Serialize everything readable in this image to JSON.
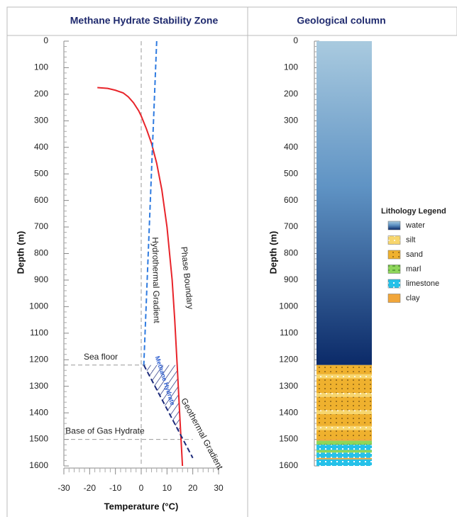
{
  "chart_data": [
    {
      "type": "line",
      "title": "Methane Hydrate Stability Zone",
      "xlabel": "Temperature (°C)",
      "ylabel": "Depth (m)",
      "xlim": [
        -30,
        30
      ],
      "xticks": [
        -30,
        -20,
        -10,
        0,
        10,
        20,
        30
      ],
      "ylim": [
        1600,
        0
      ],
      "yticks": [
        0,
        100,
        200,
        300,
        400,
        500,
        600,
        700,
        800,
        900,
        1000,
        1100,
        1200,
        1300,
        1400,
        1500,
        1600
      ],
      "series": [
        {
          "name": "Phase Boundary",
          "color": "#e8242a",
          "style": "solid",
          "x": [
            -17,
            -13,
            -10,
            -7,
            -5,
            -3,
            -1,
            0,
            2,
            4,
            6,
            8,
            10,
            12,
            13,
            14,
            15,
            16
          ],
          "values": [
            175,
            178,
            185,
            195,
            210,
            232,
            262,
            282,
            330,
            385,
            460,
            560,
            700,
            900,
            1050,
            1230,
            1420,
            1600
          ]
        },
        {
          "name": "Hydrothermal Gradient",
          "color": "#2f7be0",
          "style": "dashed",
          "x": [
            6,
            1
          ],
          "values": [
            0,
            1220
          ]
        },
        {
          "name": "Geothermal Gradient",
          "color": "#1c2a7a",
          "style": "dashed",
          "x": [
            1,
            20
          ],
          "values": [
            1220,
            1570
          ]
        }
      ],
      "vlines": [
        0
      ],
      "hlines": [
        {
          "value": 1220,
          "label": "Sea floor"
        },
        {
          "value": 1500,
          "label": "Base of Gas Hydrate"
        }
      ],
      "hydrate_zone": {
        "label": "Methane Hydrate",
        "x": [
          1,
          14,
          14.5,
          14.9
        ],
        "values": [
          1220,
          1220,
          1320,
          1480
        ]
      }
    },
    {
      "type": "column",
      "title": "Geological column",
      "ylabel": "Depth (m)",
      "ylim": [
        1600,
        0
      ],
      "yticks": [
        0,
        100,
        200,
        300,
        400,
        500,
        600,
        700,
        800,
        900,
        1000,
        1100,
        1200,
        1300,
        1400,
        1500,
        1600
      ],
      "legend_title": "Lithology Legend",
      "series": [
        {
          "name": "water",
          "color": "#3f78b8",
          "top": [
            0
          ],
          "bottom": [
            1220
          ]
        },
        {
          "name": "silt",
          "color": "#f7d66e",
          "top": [
            1255,
            1325,
            1390,
            1450
          ],
          "bottom": [
            1270,
            1340,
            1405,
            1465
          ]
        },
        {
          "name": "sand",
          "color": "#efb12e",
          "top": [
            1220,
            1270,
            1340,
            1405,
            1465
          ],
          "bottom": [
            1255,
            1325,
            1390,
            1450,
            1500
          ]
        },
        {
          "name": "marl",
          "color": "#8ed65a",
          "top": [
            1505,
            1540
          ],
          "bottom": [
            1520,
            1550
          ]
        },
        {
          "name": "limestone",
          "color": "#26c1e8",
          "top": [
            1520,
            1550,
            1575
          ],
          "bottom": [
            1540,
            1570,
            1600
          ]
        },
        {
          "name": "clay",
          "color": "#f1a63a",
          "top": [
            1500,
            1570
          ],
          "bottom": [
            1505,
            1575
          ]
        }
      ]
    }
  ]
}
